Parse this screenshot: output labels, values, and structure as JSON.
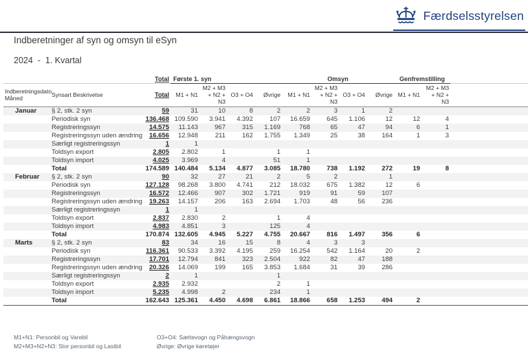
{
  "brand": {
    "name": "Færdselsstyrelsen",
    "color": "#1f4080",
    "logo_icon": "crown-icon"
  },
  "page": {
    "title": "Indberetninger af syn og omsyn til eSyn",
    "period": "2024  -  1. Kvartal"
  },
  "table": {
    "row_header_line1": "Indberetningsdato",
    "row_header_line2": "Måned",
    "synsart_header": "Synsart Beskrivelse",
    "groups": {
      "total": "Total",
      "forste": "Første 1. syn",
      "omsyn": "Omsyn",
      "genfremstilling": "Genfremstilling"
    },
    "columns": [
      "Total",
      "M1 + N1",
      "M2 + M3 + N2 + N3",
      "O3 + O4",
      "Øvrige",
      "M1 + N1",
      "M2 + M3 + N2 + N3",
      "O3 + O4",
      "Øvrige",
      "M1 + N1",
      "M2 + M3 + N2 + N3"
    ],
    "months": [
      {
        "name": "Januar",
        "rows": [
          {
            "label": "§ 2, stk. 2 syn",
            "values": [
              "59",
              "31",
              "10",
              "8",
              "2",
              "2",
              "3",
              "1",
              "2",
              "",
              ""
            ]
          },
          {
            "label": "Periodisk syn",
            "values": [
              "136.468",
              "109.590",
              "3.941",
              "4.392",
              "107",
              "16.659",
              "645",
              "1.106",
              "12",
              "12",
              "4"
            ]
          },
          {
            "label": "Registreringssyn",
            "values": [
              "14.575",
              "11.143",
              "967",
              "315",
              "1.169",
              "768",
              "65",
              "47",
              "94",
              "6",
              "1"
            ]
          },
          {
            "label": "Registreringssyn uden ændring",
            "values": [
              "16.656",
              "12.948",
              "211",
              "162",
              "1.755",
              "1.349",
              "25",
              "38",
              "164",
              "1",
              "3"
            ]
          },
          {
            "label": "Særligt registreringssyn",
            "values": [
              "1",
              "1",
              "",
              "",
              "",
              "",
              "",
              "",
              "",
              "",
              ""
            ]
          },
          {
            "label": "Toldsyn export",
            "values": [
              "2.805",
              "2.802",
              "1",
              "",
              "1",
              "1",
              "",
              "",
              "",
              "",
              ""
            ]
          },
          {
            "label": "Toldsyn import",
            "values": [
              "4.025",
              "3.969",
              "4",
              "",
              "51",
              "1",
              "",
              "",
              "",
              "",
              ""
            ]
          }
        ],
        "total": {
          "label": "Total",
          "values": [
            "174.589",
            "140.484",
            "5.134",
            "4.877",
            "3.085",
            "18.780",
            "738",
            "1.192",
            "272",
            "19",
            "8"
          ]
        }
      },
      {
        "name": "Februar",
        "rows": [
          {
            "label": "§ 2, stk. 2 syn",
            "values": [
              "90",
              "32",
              "27",
              "21",
              "2",
              "5",
              "2",
              "",
              "1",
              "",
              ""
            ]
          },
          {
            "label": "Periodisk syn",
            "values": [
              "127.128",
              "98.268",
              "3.800",
              "4.741",
              "212",
              "18.032",
              "675",
              "1.382",
              "12",
              "6",
              ""
            ]
          },
          {
            "label": "Registreringssyn",
            "values": [
              "16.572",
              "12.466",
              "907",
              "302",
              "1.721",
              "919",
              "91",
              "59",
              "107",
              "",
              ""
            ]
          },
          {
            "label": "Registreringssyn uden ændring",
            "values": [
              "19.263",
              "14.157",
              "206",
              "163",
              "2.694",
              "1.703",
              "48",
              "56",
              "236",
              "",
              ""
            ]
          },
          {
            "label": "Særligt registreringssyn",
            "values": [
              "1",
              "1",
              "",
              "",
              "",
              "",
              "",
              "",
              "",
              "",
              ""
            ]
          },
          {
            "label": "Toldsyn export",
            "values": [
              "2.837",
              "2.830",
              "2",
              "",
              "1",
              "4",
              "",
              "",
              "",
              "",
              ""
            ]
          },
          {
            "label": "Toldsyn import",
            "values": [
              "4.983",
              "4.851",
              "3",
              "",
              "125",
              "4",
              "",
              "",
              "",
              "",
              ""
            ]
          }
        ],
        "total": {
          "label": "Total",
          "values": [
            "170.874",
            "132.605",
            "4.945",
            "5.227",
            "4.755",
            "20.667",
            "816",
            "1.497",
            "356",
            "6",
            ""
          ]
        }
      },
      {
        "name": "Marts",
        "rows": [
          {
            "label": "§ 2, stk. 2 syn",
            "values": [
              "83",
              "34",
              "16",
              "15",
              "8",
              "4",
              "3",
              "3",
              "",
              "",
              ""
            ]
          },
          {
            "label": "Periodisk syn",
            "values": [
              "116.361",
              "90.533",
              "3.392",
              "4.195",
              "259",
              "16.254",
              "542",
              "1.164",
              "20",
              "2",
              ""
            ]
          },
          {
            "label": "Registreringssyn",
            "values": [
              "17.701",
              "12.794",
              "841",
              "323",
              "2.504",
              "922",
              "82",
              "47",
              "188",
              "",
              ""
            ]
          },
          {
            "label": "Registreringssyn uden ændring",
            "values": [
              "20.326",
              "14.069",
              "199",
              "165",
              "3.853",
              "1.684",
              "31",
              "39",
              "286",
              "",
              ""
            ]
          },
          {
            "label": "Særligt registreringssyn",
            "values": [
              "2",
              "1",
              "",
              "",
              "1",
              "",
              "",
              "",
              "",
              "",
              ""
            ]
          },
          {
            "label": "Toldsyn export",
            "values": [
              "2.935",
              "2.932",
              "",
              "",
              "2",
              "1",
              "",
              "",
              "",
              "",
              ""
            ]
          },
          {
            "label": "Toldsyn import",
            "values": [
              "5.235",
              "4.998",
              "2",
              "",
              "234",
              "1",
              "",
              "",
              "",
              "",
              ""
            ]
          }
        ],
        "total": {
          "label": "Total",
          "values": [
            "162.643",
            "125.361",
            "4.450",
            "4.698",
            "6.861",
            "18.866",
            "658",
            "1.253",
            "494",
            "2",
            ""
          ]
        }
      }
    ]
  },
  "footnotes": {
    "m1n1": "M1+N1: Personbil og Varebil",
    "m2m3": "M2+M3+N2+N3: Stor personbil og Lastbil",
    "o3o4": "O3+O4: Sættevogn og Påhængsvogn",
    "ovrige": "Øvrige: Øvrige køretøjer"
  }
}
